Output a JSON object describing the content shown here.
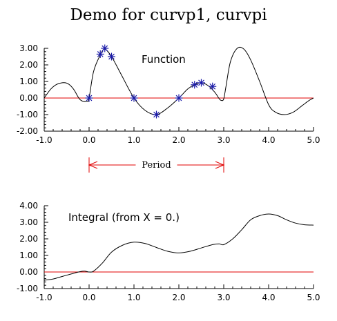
{
  "title": "Demo for curvp1, curvpi",
  "colors": {
    "reference_line": "#e00000",
    "markers": "#1a1aa8",
    "curves": "#000000"
  },
  "chart_data": [
    {
      "type": "line",
      "label": "Function",
      "xlim": [
        -1.0,
        5.0
      ],
      "ylim": [
        -2.0,
        3.0
      ],
      "x_ticks": [
        "-1.0",
        "0.0",
        "1.0",
        "2.0",
        "3.0",
        "4.0",
        "5.0"
      ],
      "y_ticks": [
        "3.00",
        "2.00",
        "1.00",
        "0.00",
        "-1.00",
        "-2.00"
      ],
      "series": [
        {
          "x": [
            -1.0,
            -0.85,
            -0.7,
            -0.5,
            -0.35,
            -0.2,
            -0.05,
            0.0,
            0.1,
            0.25,
            0.35,
            0.5,
            0.7,
            1.0,
            1.25,
            1.5,
            1.75,
            2.0,
            2.2,
            2.35,
            2.5,
            2.65,
            2.8,
            2.9,
            2.95,
            3.0,
            3.05,
            3.15,
            3.3,
            3.45,
            3.6,
            3.8,
            4.0,
            4.15,
            4.35,
            4.55,
            4.75,
            4.9,
            5.0
          ],
          "y": [
            0.0,
            0.55,
            0.85,
            0.9,
            0.55,
            -0.1,
            -0.2,
            0.0,
            1.6,
            2.6,
            2.95,
            2.5,
            1.5,
            0.0,
            -0.75,
            -1.0,
            -0.6,
            0.0,
            0.55,
            0.8,
            0.92,
            0.75,
            0.35,
            -0.05,
            -0.15,
            -0.05,
            0.7,
            2.2,
            3.0,
            2.95,
            2.3,
            1.0,
            -0.4,
            -0.85,
            -1.0,
            -0.85,
            -0.45,
            -0.15,
            0.0
          ]
        }
      ],
      "markers": {
        "x": [
          0.0,
          0.25,
          0.35,
          0.5,
          1.0,
          1.5,
          2.0,
          2.35,
          2.5,
          2.75
        ],
        "y": [
          0.0,
          2.65,
          3.0,
          2.5,
          0.0,
          -1.0,
          0.0,
          0.8,
          0.92,
          0.7
        ]
      },
      "reference_line_y": 0.0,
      "period_label": "Period",
      "period_range": [
        0.0,
        3.0
      ]
    },
    {
      "type": "line",
      "label": "Integral (from X = 0.)",
      "xlim": [
        -1.0,
        5.0
      ],
      "ylim": [
        -1.0,
        4.0
      ],
      "x_ticks": [
        "-1.0",
        "0.0",
        "1.0",
        "2.0",
        "3.0",
        "4.0",
        "5.0"
      ],
      "y_ticks": [
        "4.00",
        "3.00",
        "2.00",
        "1.00",
        "0.00",
        "-1.00"
      ],
      "series": [
        {
          "x": [
            -1.0,
            -0.8,
            -0.6,
            -0.4,
            -0.2,
            -0.1,
            0.0,
            0.1,
            0.3,
            0.5,
            0.75,
            1.0,
            1.25,
            1.5,
            1.75,
            2.0,
            2.25,
            2.5,
            2.75,
            2.9,
            3.0,
            3.2,
            3.4,
            3.6,
            3.8,
            4.0,
            4.2,
            4.4,
            4.6,
            4.8,
            5.0
          ],
          "y": [
            -0.5,
            -0.42,
            -0.27,
            -0.12,
            0.02,
            0.05,
            0.0,
            0.05,
            0.55,
            1.2,
            1.62,
            1.8,
            1.72,
            1.48,
            1.25,
            1.15,
            1.25,
            1.45,
            1.65,
            1.7,
            1.65,
            2.0,
            2.55,
            3.15,
            3.4,
            3.5,
            3.4,
            3.15,
            2.95,
            2.85,
            2.83
          ]
        }
      ],
      "reference_line_y": 0.0
    }
  ]
}
